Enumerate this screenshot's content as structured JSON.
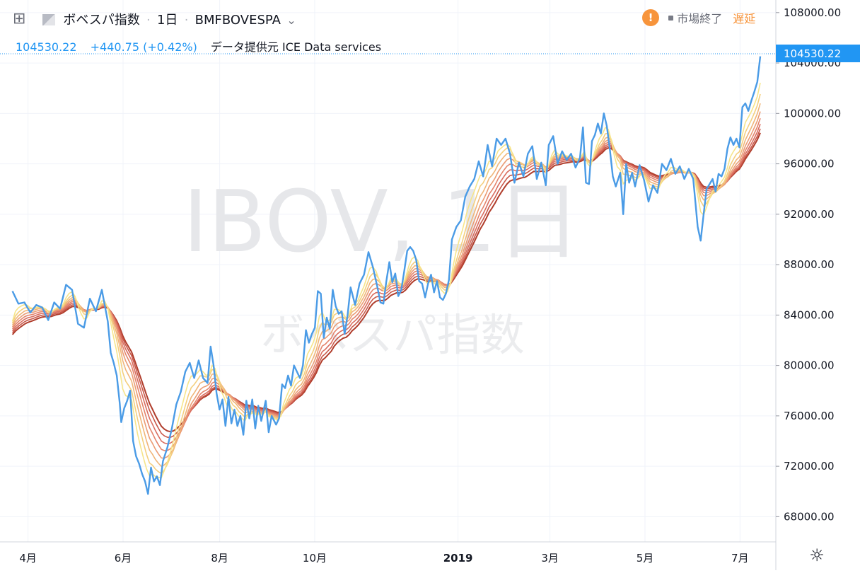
{
  "header": {
    "symbol_title": "ボベスパ指数",
    "interval": "1日",
    "exchange_symbol": "BMFBOVESPA",
    "last_price": "104530.22",
    "change": "+440.75 (+0.42%)",
    "data_provider": "データ提供元 ICE Data services",
    "market_status": "市場終了",
    "delay_label": "遅延",
    "alert_glyph": "!",
    "plus_glyph": "⊞",
    "chevron_glyph": "⌄"
  },
  "watermark": {
    "line1": "IBOV, 1日",
    "line2": "ボベスパ指数"
  },
  "price_badge": "104530.22",
  "colors": {
    "price_line": "#4a9be6",
    "ma_colors": [
      "#f6e58a",
      "#f4cf7e",
      "#f0b579",
      "#eb9c74",
      "#e4846c",
      "#d96d5f",
      "#c85748",
      "#b03d2c"
    ],
    "status_orange": "#f7943b",
    "delay_text": "#f7943b",
    "badge_bg": "#2196f3"
  },
  "chart_data": {
    "type": "line",
    "title": "",
    "xlabel": "",
    "ylabel": "",
    "x_ticks": [
      {
        "label": "4月",
        "day": 10
      },
      {
        "label": "6月",
        "day": 71
      },
      {
        "label": "8月",
        "day": 133
      },
      {
        "label": "10月",
        "day": 194
      },
      {
        "label": "2019",
        "day": 286
      },
      {
        "label": "3月",
        "day": 345
      },
      {
        "label": "5月",
        "day": 406
      },
      {
        "label": "7月",
        "day": 467
      }
    ],
    "y_ticks": [
      "68000.00",
      "72000.00",
      "76000.00",
      "80000.00",
      "84000.00",
      "88000.00",
      "92000.00",
      "96000.00",
      "100000.00",
      "104000.00",
      "108000.00"
    ],
    "ylim": [
      66000,
      109000
    ],
    "xlim": [
      -8,
      490
    ],
    "grid": true,
    "legend": "none",
    "series": [
      {
        "values_xy": [
          [
            0,
            85900
          ],
          [
            4,
            84900
          ],
          [
            8,
            85000
          ],
          [
            12,
            84200
          ],
          [
            16,
            84800
          ],
          [
            20,
            84600
          ],
          [
            24,
            83600
          ],
          [
            28,
            85000
          ],
          [
            32,
            84500
          ],
          [
            36,
            86400
          ],
          [
            40,
            86000
          ],
          [
            44,
            83300
          ],
          [
            48,
            83000
          ],
          [
            52,
            85300
          ],
          [
            56,
            84300
          ],
          [
            60,
            86000
          ],
          [
            64,
            83500
          ],
          [
            66,
            81000
          ],
          [
            68,
            80200
          ],
          [
            70,
            79200
          ],
          [
            72,
            77000
          ],
          [
            73,
            75500
          ],
          [
            75,
            76600
          ],
          [
            77,
            77200
          ],
          [
            79,
            78000
          ],
          [
            81,
            74000
          ],
          [
            83,
            72800
          ],
          [
            85,
            72200
          ],
          [
            87,
            71400
          ],
          [
            89,
            70800
          ],
          [
            91,
            69800
          ],
          [
            93,
            71900
          ],
          [
            95,
            70800
          ],
          [
            97,
            71200
          ],
          [
            99,
            70500
          ],
          [
            101,
            72400
          ],
          [
            104,
            73500
          ],
          [
            107,
            75000
          ],
          [
            110,
            76900
          ],
          [
            113,
            77900
          ],
          [
            116,
            79500
          ],
          [
            119,
            80200
          ],
          [
            122,
            79000
          ],
          [
            125,
            80400
          ],
          [
            128,
            79000
          ],
          [
            131,
            78600
          ],
          [
            133,
            81500
          ],
          [
            135,
            80000
          ],
          [
            137,
            77800
          ],
          [
            139,
            76500
          ],
          [
            141,
            77300
          ],
          [
            143,
            75200
          ],
          [
            145,
            77500
          ],
          [
            147,
            75400
          ],
          [
            149,
            76500
          ],
          [
            151,
            75200
          ],
          [
            153,
            76000
          ],
          [
            155,
            74500
          ],
          [
            157,
            77200
          ],
          [
            159,
            75800
          ],
          [
            161,
            77300
          ],
          [
            163,
            75000
          ],
          [
            165,
            76800
          ],
          [
            167,
            75600
          ],
          [
            170,
            77200
          ],
          [
            172,
            74700
          ],
          [
            174,
            76000
          ],
          [
            177,
            75300
          ],
          [
            179,
            75800
          ],
          [
            181,
            78500
          ],
          [
            183,
            78200
          ],
          [
            185,
            79200
          ],
          [
            187,
            78400
          ],
          [
            189,
            80000
          ],
          [
            191,
            79500
          ],
          [
            193,
            79000
          ],
          [
            195,
            80000
          ],
          [
            197,
            82800
          ],
          [
            199,
            81800
          ],
          [
            201,
            82500
          ],
          [
            203,
            83000
          ],
          [
            205,
            85900
          ],
          [
            207,
            85700
          ],
          [
            209,
            82200
          ],
          [
            211,
            83800
          ],
          [
            213,
            82900
          ],
          [
            215,
            86000
          ],
          [
            217,
            84700
          ],
          [
            219,
            84100
          ],
          [
            221,
            84300
          ],
          [
            223,
            82500
          ],
          [
            225,
            84000
          ],
          [
            227,
            86200
          ],
          [
            230,
            84800
          ],
          [
            233,
            86500
          ],
          [
            236,
            87200
          ],
          [
            239,
            89000
          ],
          [
            242,
            87800
          ],
          [
            245,
            86200
          ],
          [
            247,
            85000
          ],
          [
            249,
            84900
          ],
          [
            251,
            86700
          ],
          [
            253,
            88200
          ],
          [
            255,
            86600
          ],
          [
            257,
            87300
          ],
          [
            259,
            85500
          ],
          [
            261,
            86000
          ],
          [
            263,
            87500
          ],
          [
            265,
            89100
          ],
          [
            267,
            89400
          ],
          [
            269,
            89100
          ],
          [
            271,
            88400
          ],
          [
            273,
            86700
          ],
          [
            275,
            86500
          ],
          [
            277,
            85400
          ],
          [
            279,
            86500
          ],
          [
            281,
            87200
          ],
          [
            283,
            85800
          ],
          [
            285,
            86700
          ],
          [
            287,
            85400
          ],
          [
            289,
            85200
          ],
          [
            291,
            85700
          ],
          [
            293,
            86800
          ],
          [
            295,
            90000
          ],
          [
            298,
            91000
          ],
          [
            301,
            91500
          ],
          [
            304,
            93400
          ],
          [
            307,
            94200
          ],
          [
            310,
            94800
          ],
          [
            313,
            96200
          ],
          [
            316,
            95000
          ],
          [
            319,
            97500
          ],
          [
            322,
            95800
          ],
          [
            325,
            98000
          ],
          [
            328,
            97500
          ],
          [
            331,
            98000
          ],
          [
            334,
            96800
          ],
          [
            337,
            94500
          ],
          [
            340,
            96100
          ],
          [
            343,
            95000
          ],
          [
            346,
            96800
          ],
          [
            349,
            97400
          ],
          [
            352,
            94800
          ],
          [
            355,
            96100
          ],
          [
            358,
            94300
          ],
          [
            360,
            97500
          ],
          [
            363,
            98200
          ],
          [
            366,
            96000
          ],
          [
            369,
            97000
          ],
          [
            372,
            96300
          ],
          [
            375,
            96800
          ],
          [
            378,
            95700
          ],
          [
            381,
            96500
          ],
          [
            383,
            98900
          ],
          [
            385,
            94500
          ],
          [
            387,
            94400
          ],
          [
            389,
            97800
          ],
          [
            391,
            98300
          ],
          [
            393,
            99200
          ],
          [
            395,
            98400
          ],
          [
            397,
            100000
          ],
          [
            399,
            99000
          ],
          [
            401,
            97200
          ],
          [
            403,
            95000
          ],
          [
            405,
            94200
          ],
          [
            408,
            95300
          ],
          [
            410,
            92000
          ],
          [
            412,
            96000
          ],
          [
            414,
            94500
          ],
          [
            416,
            95300
          ],
          [
            418,
            94200
          ],
          [
            421,
            95900
          ],
          [
            424,
            94700
          ],
          [
            427,
            93000
          ],
          [
            430,
            94300
          ],
          [
            433,
            93700
          ],
          [
            436,
            96000
          ],
          [
            439,
            95500
          ],
          [
            442,
            96400
          ],
          [
            445,
            95200
          ],
          [
            448,
            95800
          ],
          [
            451,
            94800
          ],
          [
            454,
            95600
          ],
          [
            457,
            94800
          ],
          [
            460,
            91000
          ],
          [
            462,
            89900
          ],
          [
            464,
            92000
          ],
          [
            466,
            94000
          ],
          [
            468,
            94400
          ],
          [
            470,
            94800
          ],
          [
            472,
            93800
          ],
          [
            474,
            95200
          ],
          [
            476,
            95000
          ],
          [
            478,
            95600
          ],
          [
            480,
            97200
          ],
          [
            482,
            98100
          ],
          [
            484,
            97500
          ],
          [
            486,
            98000
          ],
          [
            488,
            97300
          ],
          [
            490,
            100500
          ],
          [
            492,
            100800
          ],
          [
            494,
            100200
          ],
          [
            496,
            101000
          ],
          [
            498,
            101700
          ],
          [
            500,
            102500
          ],
          [
            502,
            104530
          ]
        ]
      }
    ],
    "ma_layers": 8
  },
  "toolbar": {
    "settings_glyph": "☼"
  }
}
